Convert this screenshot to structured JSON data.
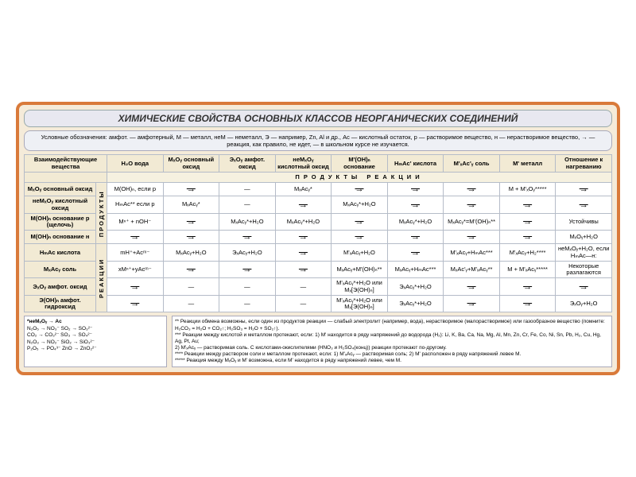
{
  "title": "ХИМИЧЕСКИЕ СВОЙСТВА ОСНОВНЫХ КЛАССОВ НЕОРГАНИЧЕСКИХ СОЕДИНЕНИЙ",
  "legend": "Условные обозначения: амфот. — амфотерный, М — металл, неМ — неметалл, Э — например, Zn, Al и др., Ас — кислотный остаток, р — растворимое вещество, н — нерастворимое вещество, → — реакция, как правило, не идет, — в школьном курсе не изучается.",
  "columns": {
    "c0": "Взаимодействующие вещества",
    "c1": "H₂O вода",
    "c2": "MₓOᵧ основный оксид",
    "c3": "ЭₓOᵧ амфот. оксид",
    "c4": "неMₓOᵧ кислотный оксид",
    "c5": "M'(OH)ₙ основание",
    "c6": "HₘAc' кислота",
    "c7": "M'ₓAc'ᵧ соль",
    "c8": "M' металл",
    "c9": "Отношение к нагреванию"
  },
  "prodHeader": "ПРОДУКТЫ   РЕАКЦИИ",
  "vert1": "ПРОДУКТЫ",
  "vert2": "РЕАКЦИИ",
  "rows": [
    {
      "h": "MₓOᵧ основный оксид",
      "c": [
        "M(OH)ₙ, если р",
        "na",
        "—",
        "MₓAcᵧ*",
        "na",
        "na",
        "na",
        "M + M'ₓOᵧ*****",
        "na"
      ]
    },
    {
      "h": "неMₓOᵧ кислотный оксид",
      "c": [
        "HₘAc** если р",
        "MₓAcᵧ*",
        "—",
        "na",
        "MₓAcᵧ*+H₂O",
        "na",
        "na",
        "na",
        "na"
      ]
    },
    {
      "h": "M(OH)ₙ основание р (щелочь)",
      "c": [
        "Mⁿ⁺ + nOH⁻",
        "na",
        "MₓAcᵧ*+H₂O",
        "MₓAcᵧ*+H₂O",
        "na",
        "MₓAcᵧ*+H₂O",
        "MₓAcᵧ*=M'(OH)ₙ**",
        "na",
        "Устойчивы"
      ]
    },
    {
      "h": "M(OH)ₙ основание н",
      "c": [
        "na",
        "na",
        "na",
        "na",
        "na",
        "na",
        "na",
        "na",
        "MₓOᵧ+H₂O"
      ]
    },
    {
      "h": "HₘAc кислота",
      "c": [
        "mH⁺+Acᵐ⁻",
        "MₓAcᵧ+H₂O",
        "ЭₓAcᵧ+H₂O",
        "na",
        "M'ₓAcᵧ+H₂O",
        "na",
        "M'ₓAcᵧ+HₘAc***",
        "M'ₓAcᵧ+H₂****",
        "неMₓOᵧ+H₂O, если HₘAc—н:"
      ]
    },
    {
      "h": "MₓAcᵧ соль",
      "c": [
        "xMⁿ⁺+yAcᵐ⁻",
        "na",
        "na",
        "na",
        "MₓAcᵧ+M'(OH)ₙ**",
        "MₓAcᵧ+HₘAc***",
        "MₓAc'ᵧ+M'ₓAcᵧ**",
        "M + M'ₓAcᵧ*****",
        "Некоторые разлагаются"
      ]
    },
    {
      "h": "ЭₓOᵧ амфот. оксид",
      "c": [
        "na",
        "—",
        "—",
        "—",
        "M'ₓAcᵧ*+H₂O или Mₓ[Э(OH)ₙ]",
        "ЭₓAcᵧ*+H₂O",
        "na",
        "na",
        "na"
      ]
    },
    {
      "h": "Э(OH)ₙ амфот. гидроксид",
      "c": [
        "na",
        "—",
        "—",
        "—",
        "M'ₓAcᵧ*+H₂O или Mₓ[Э(OH)ₙ]",
        "ЭₓAcᵧ*+H₂O",
        "na",
        "na",
        "ЭₓOᵧ+H₂O"
      ]
    }
  ],
  "footLeftTitle": "*неMₓOᵧ →  Ac",
  "footLeft": [
    "N₂O₅ → NO₃⁻   SO₂ → SO₃²⁻",
    "CO₂ → CO₃²⁻   SO₃ → SO₄²⁻",
    "N₂O₃ → NO₂⁻   SiO₂ → SiO₃²⁻",
    "P₂O₅ → PO₄³⁻   ZnO → ZnO₂²⁻"
  ],
  "footRight": [
    "** Реакции обмена возможны, если один из продуктов реакции — слабый электролит (например, вода), нерастворимое (малорастворимое) или газообразное вещество (помните: H₂CO₃ = H₂O + CO₂↑; H₂SO₃ = H₂O + SO₂↑).",
    "*** Реакции между кислотой и металлом протекают, если: 1) M' находится в ряду напряжений до водорода (H₂): Li, K, Ba, Ca, Na, Mg, Al, Mn, Zn, Cr, Fe, Co, Ni, Sn, Pb, H₂, Cu, Hg, Ag, Pt, Au;",
    "2) M'ₓAcᵧ — растворимая соль. С кислотами-окислителями (HNO₃ и H₂SO₄(конц)) реакции протекают по-другому.",
    "**** Реакции между раствором соли и металлом протекают, если: 1) M'ₓAcᵧ — растворимая соль; 2) M' расположен в ряду напряжений левее M.",
    "***** Реакция между MₓOᵧ и M' возможна, если M' находится в ряду напряжений левее, чем M."
  ]
}
